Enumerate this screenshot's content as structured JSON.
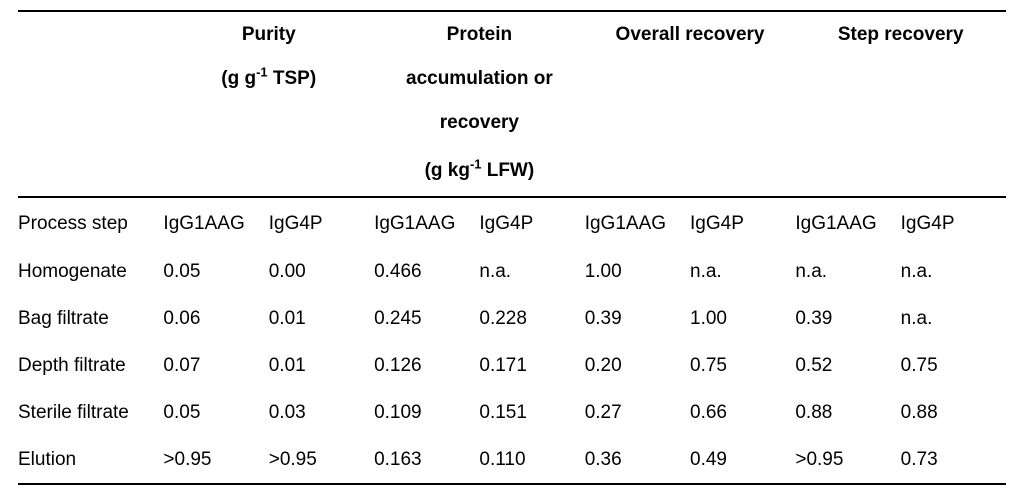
{
  "background_color": "#ffffff",
  "text_color": "#000000",
  "border_color": "#000000",
  "font_family": "Arial, Helvetica, sans-serif",
  "base_fontsize_pt": 14,
  "groups": [
    {
      "title": "Purity",
      "subtitle_lines": [
        "(g g<sup>-1</sup> TSP)"
      ]
    },
    {
      "title": "Protein",
      "subtitle_lines": [
        "accumulation or",
        "recovery",
        "(g kg<sup>-1</sup> LFW)"
      ]
    },
    {
      "title": "Overall recovery",
      "subtitle_lines": []
    },
    {
      "title": "Step recovery",
      "subtitle_lines": []
    }
  ],
  "row_label_header": "Process step",
  "sub_headers": [
    "IgG1AAG",
    "IgG4P"
  ],
  "rows": [
    {
      "label": "Homogenate",
      "values": [
        "0.05",
        "0.00",
        "0.466",
        "n.a.",
        "1.00",
        "n.a.",
        "n.a.",
        "n.a."
      ]
    },
    {
      "label": "Bag filtrate",
      "values": [
        "0.06",
        "0.01",
        "0.245",
        "0.228",
        "0.39",
        "1.00",
        "0.39",
        "n.a."
      ]
    },
    {
      "label": "Depth filtrate",
      "values": [
        "0.07",
        "0.01",
        "0.126",
        "0.171",
        "0.20",
        "0.75",
        "0.52",
        "0.75"
      ]
    },
    {
      "label": "Sterile filtrate",
      "values": [
        "0.05",
        "0.03",
        "0.109",
        "0.151",
        "0.27",
        "0.66",
        "0.88",
        "0.88"
      ]
    },
    {
      "label": "Elution",
      "values": [
        ">0.95",
        ">0.95",
        "0.163",
        "0.110",
        "0.36",
        "0.49",
        ">0.95",
        "0.73"
      ]
    }
  ]
}
